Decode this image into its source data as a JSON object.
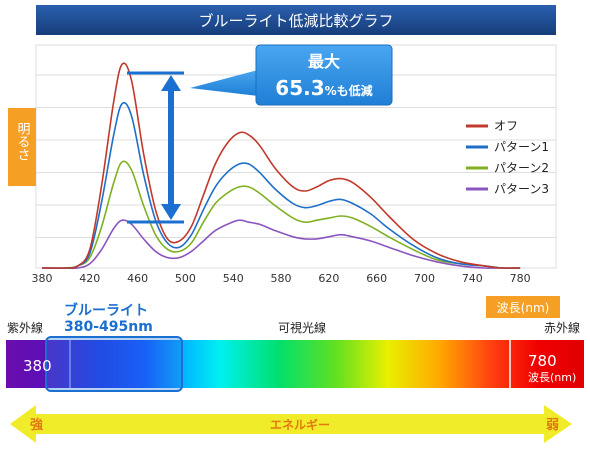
{
  "title": "ブルーライト低減比較グラフ",
  "callout": {
    "line1": "最大",
    "value": "65.3",
    "unit": "%も低減"
  },
  "ylabel": "明るさ",
  "xlabel": "波長(nm)",
  "band": {
    "blue_title": "ブルーライト",
    "blue_range": "380-495nm",
    "uv_label": "紫外線",
    "visible_label": "可視光線",
    "ir_label": "赤外線",
    "left_value": "380",
    "right_value": "780",
    "right_unit": "波長(nm)"
  },
  "energy": {
    "strong": "強",
    "label": "エネルギー",
    "weak": "弱"
  },
  "colors": {
    "title_bar": "#1b4a8c",
    "callout": "#2a8ce0",
    "arrow": "#1b6fd0",
    "ylabel_box": "#f5a024",
    "xlabel_box": "#f5a024",
    "energy_bar": "#f0ec2a",
    "energy_text": "#e07a10"
  },
  "chart_data": {
    "type": "line",
    "title": "ブルーライト低減比較グラフ",
    "ylabel": "明るさ",
    "xlabel": "波長(nm)",
    "x_ticks": [
      380,
      420,
      460,
      500,
      540,
      580,
      620,
      660,
      700,
      740,
      780
    ],
    "x_tick_labels": [
      "380",
      "420",
      "460",
      "500",
      "540",
      "580",
      "620",
      "660",
      "700",
      "740",
      "780"
    ],
    "xlim": [
      375,
      810
    ],
    "ylim": [
      0,
      1.0
    ],
    "grid": true,
    "legend_position": "right",
    "x": [
      380,
      400,
      410,
      420,
      430,
      440,
      447,
      455,
      465,
      475,
      485,
      495,
      505,
      515,
      525,
      535,
      545,
      553,
      562,
      575,
      590,
      600,
      610,
      620,
      630,
      640,
      655,
      670,
      690,
      710,
      730,
      750,
      765,
      780
    ],
    "series": [
      {
        "name": "オフ",
        "color": "#c0392b",
        "values": [
          0.0,
          0.0,
          0.01,
          0.09,
          0.4,
          0.8,
          0.98,
          0.9,
          0.55,
          0.28,
          0.14,
          0.13,
          0.2,
          0.35,
          0.5,
          0.6,
          0.65,
          0.64,
          0.59,
          0.48,
          0.39,
          0.37,
          0.39,
          0.42,
          0.43,
          0.41,
          0.34,
          0.25,
          0.14,
          0.07,
          0.03,
          0.01,
          0.0,
          0.0
        ]
      },
      {
        "name": "パターン1",
        "color": "#1f6fc8",
        "values": [
          0.0,
          0.0,
          0.01,
          0.07,
          0.32,
          0.64,
          0.79,
          0.73,
          0.45,
          0.23,
          0.12,
          0.1,
          0.16,
          0.28,
          0.39,
          0.46,
          0.5,
          0.5,
          0.46,
          0.38,
          0.31,
          0.29,
          0.3,
          0.32,
          0.33,
          0.31,
          0.26,
          0.19,
          0.11,
          0.05,
          0.02,
          0.01,
          0.0,
          0.0
        ]
      },
      {
        "name": "パターン2",
        "color": "#7fb020",
        "values": [
          0.0,
          0.0,
          0.01,
          0.05,
          0.2,
          0.41,
          0.51,
          0.47,
          0.3,
          0.16,
          0.09,
          0.08,
          0.12,
          0.22,
          0.31,
          0.36,
          0.39,
          0.39,
          0.36,
          0.3,
          0.24,
          0.22,
          0.23,
          0.24,
          0.25,
          0.24,
          0.2,
          0.15,
          0.09,
          0.04,
          0.02,
          0.01,
          0.0,
          0.0
        ]
      },
      {
        "name": "パターン3",
        "color": "#8b55c0",
        "values": [
          0.0,
          0.0,
          0.0,
          0.02,
          0.09,
          0.19,
          0.23,
          0.21,
          0.14,
          0.08,
          0.05,
          0.05,
          0.08,
          0.13,
          0.18,
          0.21,
          0.23,
          0.22,
          0.21,
          0.18,
          0.15,
          0.14,
          0.14,
          0.15,
          0.16,
          0.15,
          0.13,
          0.1,
          0.06,
          0.03,
          0.01,
          0.0,
          0.0,
          0.0
        ]
      }
    ],
    "annotation": "最大 65.3%も低減"
  }
}
